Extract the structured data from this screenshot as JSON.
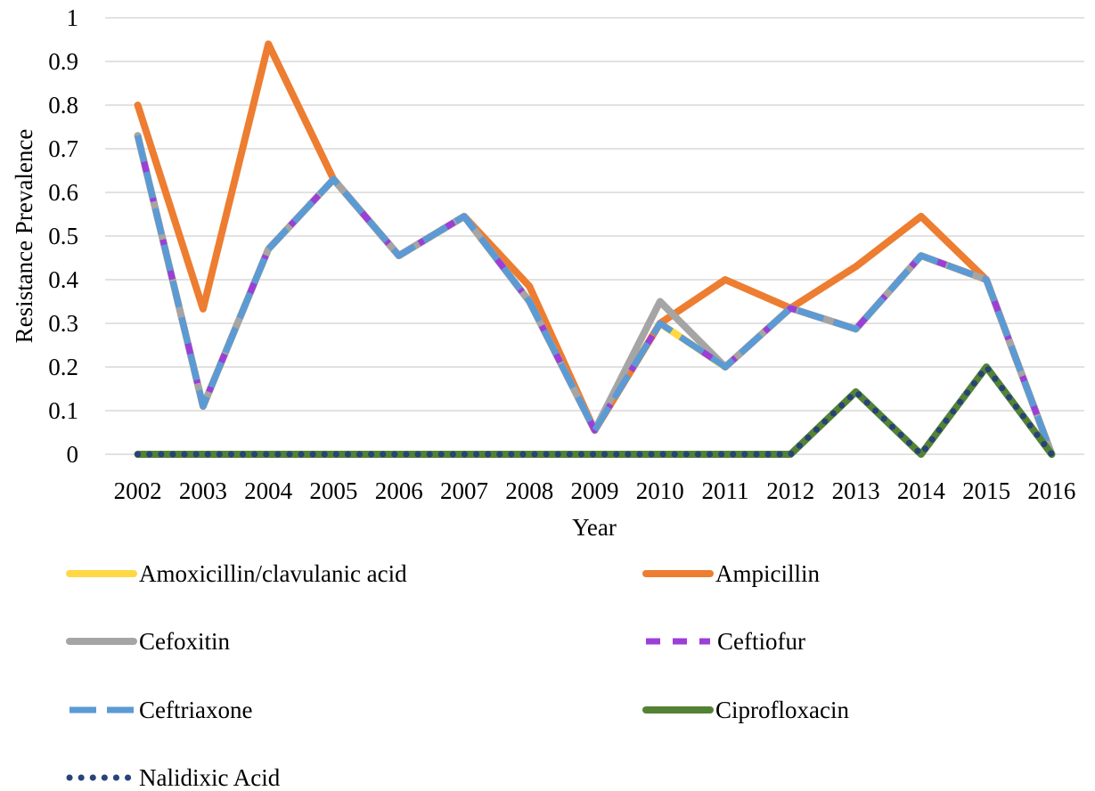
{
  "chart_data": {
    "type": "line",
    "x": [
      "2002",
      "2003",
      "2004",
      "2005",
      "2006",
      "2007",
      "2008",
      "2009",
      "2010",
      "2011",
      "2012",
      "2013",
      "2014",
      "2015",
      "2016"
    ],
    "xlabel": "Year",
    "ylabel": "Resistance Prevalence",
    "ylim": [
      0,
      1
    ],
    "yticks": [
      "0",
      "0.1",
      "0.2",
      "0.3",
      "0.4",
      "0.5",
      "0.6",
      "0.7",
      "0.8",
      "0.9",
      "1"
    ],
    "grid": true,
    "legend_position": "bottom",
    "series": [
      {
        "name": "Amoxicillin/clavulanic acid",
        "color": "#FFD845",
        "dash": "solid",
        "values": [
          0.73,
          0.11,
          0.47,
          0.63,
          0.455,
          0.545,
          0.35,
          0.055,
          0.3,
          0.2,
          0.335,
          0.287,
          0.455,
          0.4,
          0
        ]
      },
      {
        "name": "Ampicillin",
        "color": "#ED7D31",
        "dash": "solid",
        "values": [
          0.8,
          0.333,
          0.94,
          0.63,
          0.455,
          0.545,
          0.385,
          0.055,
          0.3,
          0.4,
          0.335,
          0.43,
          0.545,
          0.4,
          0
        ]
      },
      {
        "name": "Cefoxitin",
        "color": "#A5A5A5",
        "dash": "solid",
        "values": [
          0.73,
          0.11,
          0.47,
          0.63,
          0.455,
          0.545,
          0.35,
          0.055,
          0.35,
          0.2,
          0.335,
          0.287,
          0.455,
          0.4,
          0
        ]
      },
      {
        "name": "Ceftiofur",
        "color": "#9B3FD8",
        "dash": "dash",
        "values": [
          0.73,
          0.11,
          0.47,
          0.63,
          0.455,
          0.545,
          0.35,
          0.055,
          0.3,
          0.2,
          0.335,
          0.287,
          0.455,
          0.4,
          0
        ]
      },
      {
        "name": "Ceftriaxone",
        "color": "#5B9BD5",
        "dash": "longdash",
        "values": [
          0.73,
          0.11,
          0.47,
          0.63,
          0.455,
          0.545,
          0.35,
          0.055,
          0.3,
          0.2,
          0.335,
          0.287,
          0.455,
          0.4,
          0
        ]
      },
      {
        "name": "Ciprofloxacin",
        "color": "#548235",
        "dash": "solid",
        "values": [
          0,
          0,
          0,
          0,
          0,
          0,
          0,
          0,
          0,
          0,
          0,
          0.143,
          0,
          0.2,
          0
        ]
      },
      {
        "name": "Nalidixic Acid",
        "color": "#264478",
        "dash": "dot",
        "values": [
          0,
          0,
          0,
          0,
          0,
          0,
          0,
          0,
          0,
          0,
          0,
          0.143,
          0,
          0.2,
          0
        ]
      }
    ]
  }
}
